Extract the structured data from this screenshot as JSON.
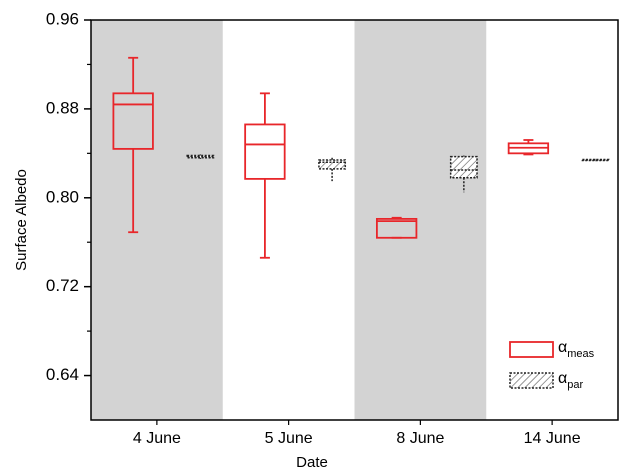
{
  "chart_data": {
    "type": "box",
    "xlabel": "Date",
    "ylabel": "Surface Albedo",
    "categories": [
      "4 June",
      "5 June",
      "8 June",
      "14 June"
    ],
    "shaded": [
      true,
      false,
      true,
      false
    ],
    "shade_color": "#d3d3d3",
    "ylim": [
      0.6,
      0.96
    ],
    "yticks": [
      0.64,
      0.72,
      {
        "value": 0.8,
        "label": "0.80"
      },
      0.88,
      0.96
    ],
    "yticks_minor": [
      0.68,
      0.76,
      0.84,
      0.92
    ],
    "legend": "lower right",
    "series": [
      {
        "name": "α",
        "name_sub": "meas",
        "color": "#e8262a",
        "hatch": false,
        "values": [
          {
            "low": 0.769,
            "q1": 0.844,
            "median": 0.884,
            "q3": 0.894,
            "high": 0.926
          },
          {
            "low": 0.746,
            "q1": 0.817,
            "median": 0.848,
            "q3": 0.866,
            "high": 0.894
          },
          {
            "low": 0.764,
            "q1": 0.764,
            "median": 0.779,
            "q3": 0.781,
            "high": 0.782
          },
          {
            "low": 0.839,
            "q1": 0.84,
            "median": 0.845,
            "q3": 0.849,
            "high": 0.852
          }
        ]
      },
      {
        "name": "α",
        "name_sub": "par",
        "color": "#222222",
        "hatch": true,
        "values": [
          {
            "low": 0.835,
            "q1": 0.836,
            "median": 0.837,
            "q3": 0.838,
            "high": 0.839
          },
          {
            "low": 0.815,
            "q1": 0.826,
            "median": 0.832,
            "q3": 0.834,
            "high": 0.836
          },
          {
            "low": 0.805,
            "q1": 0.818,
            "median": 0.825,
            "q3": 0.837,
            "high": 0.838
          },
          {
            "low": 0.833,
            "q1": 0.8335,
            "median": 0.834,
            "q3": 0.8345,
            "high": 0.835
          }
        ]
      }
    ]
  }
}
